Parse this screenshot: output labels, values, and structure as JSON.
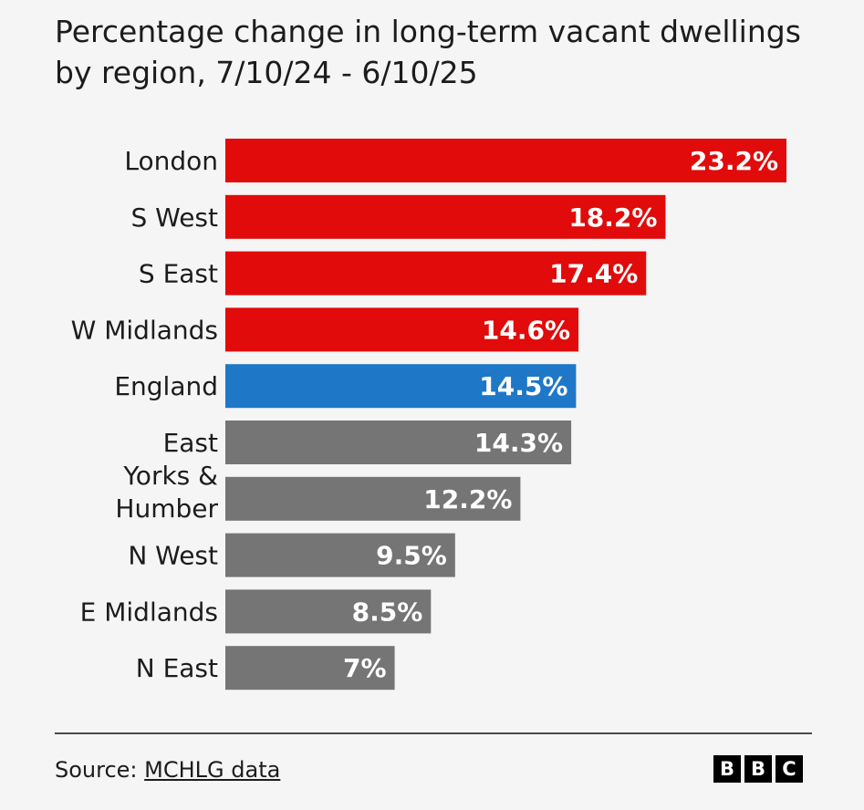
{
  "title": "Percentage change in long-term vacant dwellings by region, 7/10/24 - 6/10/25",
  "source": {
    "prefix": "Source: ",
    "link_text": "MCHLG data"
  },
  "logo": {
    "letters": [
      "B",
      "B",
      "C"
    ]
  },
  "colors": {
    "region_above_average": "#e10b0b",
    "england": "#1f77c8",
    "region_below_average": "#757575",
    "value_text": "#ffffff"
  },
  "chart_data": {
    "type": "bar",
    "orientation": "horizontal",
    "categories": [
      [
        "London"
      ],
      [
        "S West"
      ],
      [
        "S East"
      ],
      [
        "W Midlands"
      ],
      [
        "England"
      ],
      [
        "East"
      ],
      [
        "Yorks &",
        "Humber"
      ],
      [
        "N West"
      ],
      [
        "E Midlands"
      ],
      [
        "N East"
      ]
    ],
    "values": [
      23.2,
      18.2,
      17.4,
      14.6,
      14.5,
      14.3,
      12.2,
      9.5,
      8.5,
      7
    ],
    "value_labels": [
      "23.2%",
      "18.2%",
      "17.4%",
      "14.6%",
      "14.5%",
      "14.3%",
      "12.2%",
      "9.5%",
      "8.5%",
      "7%"
    ],
    "bar_colors": [
      "red",
      "red",
      "red",
      "red",
      "blue",
      "grey",
      "grey",
      "grey",
      "grey",
      "grey"
    ],
    "xlim": [
      0,
      23.2
    ],
    "grid": false,
    "axis_visible": false
  }
}
